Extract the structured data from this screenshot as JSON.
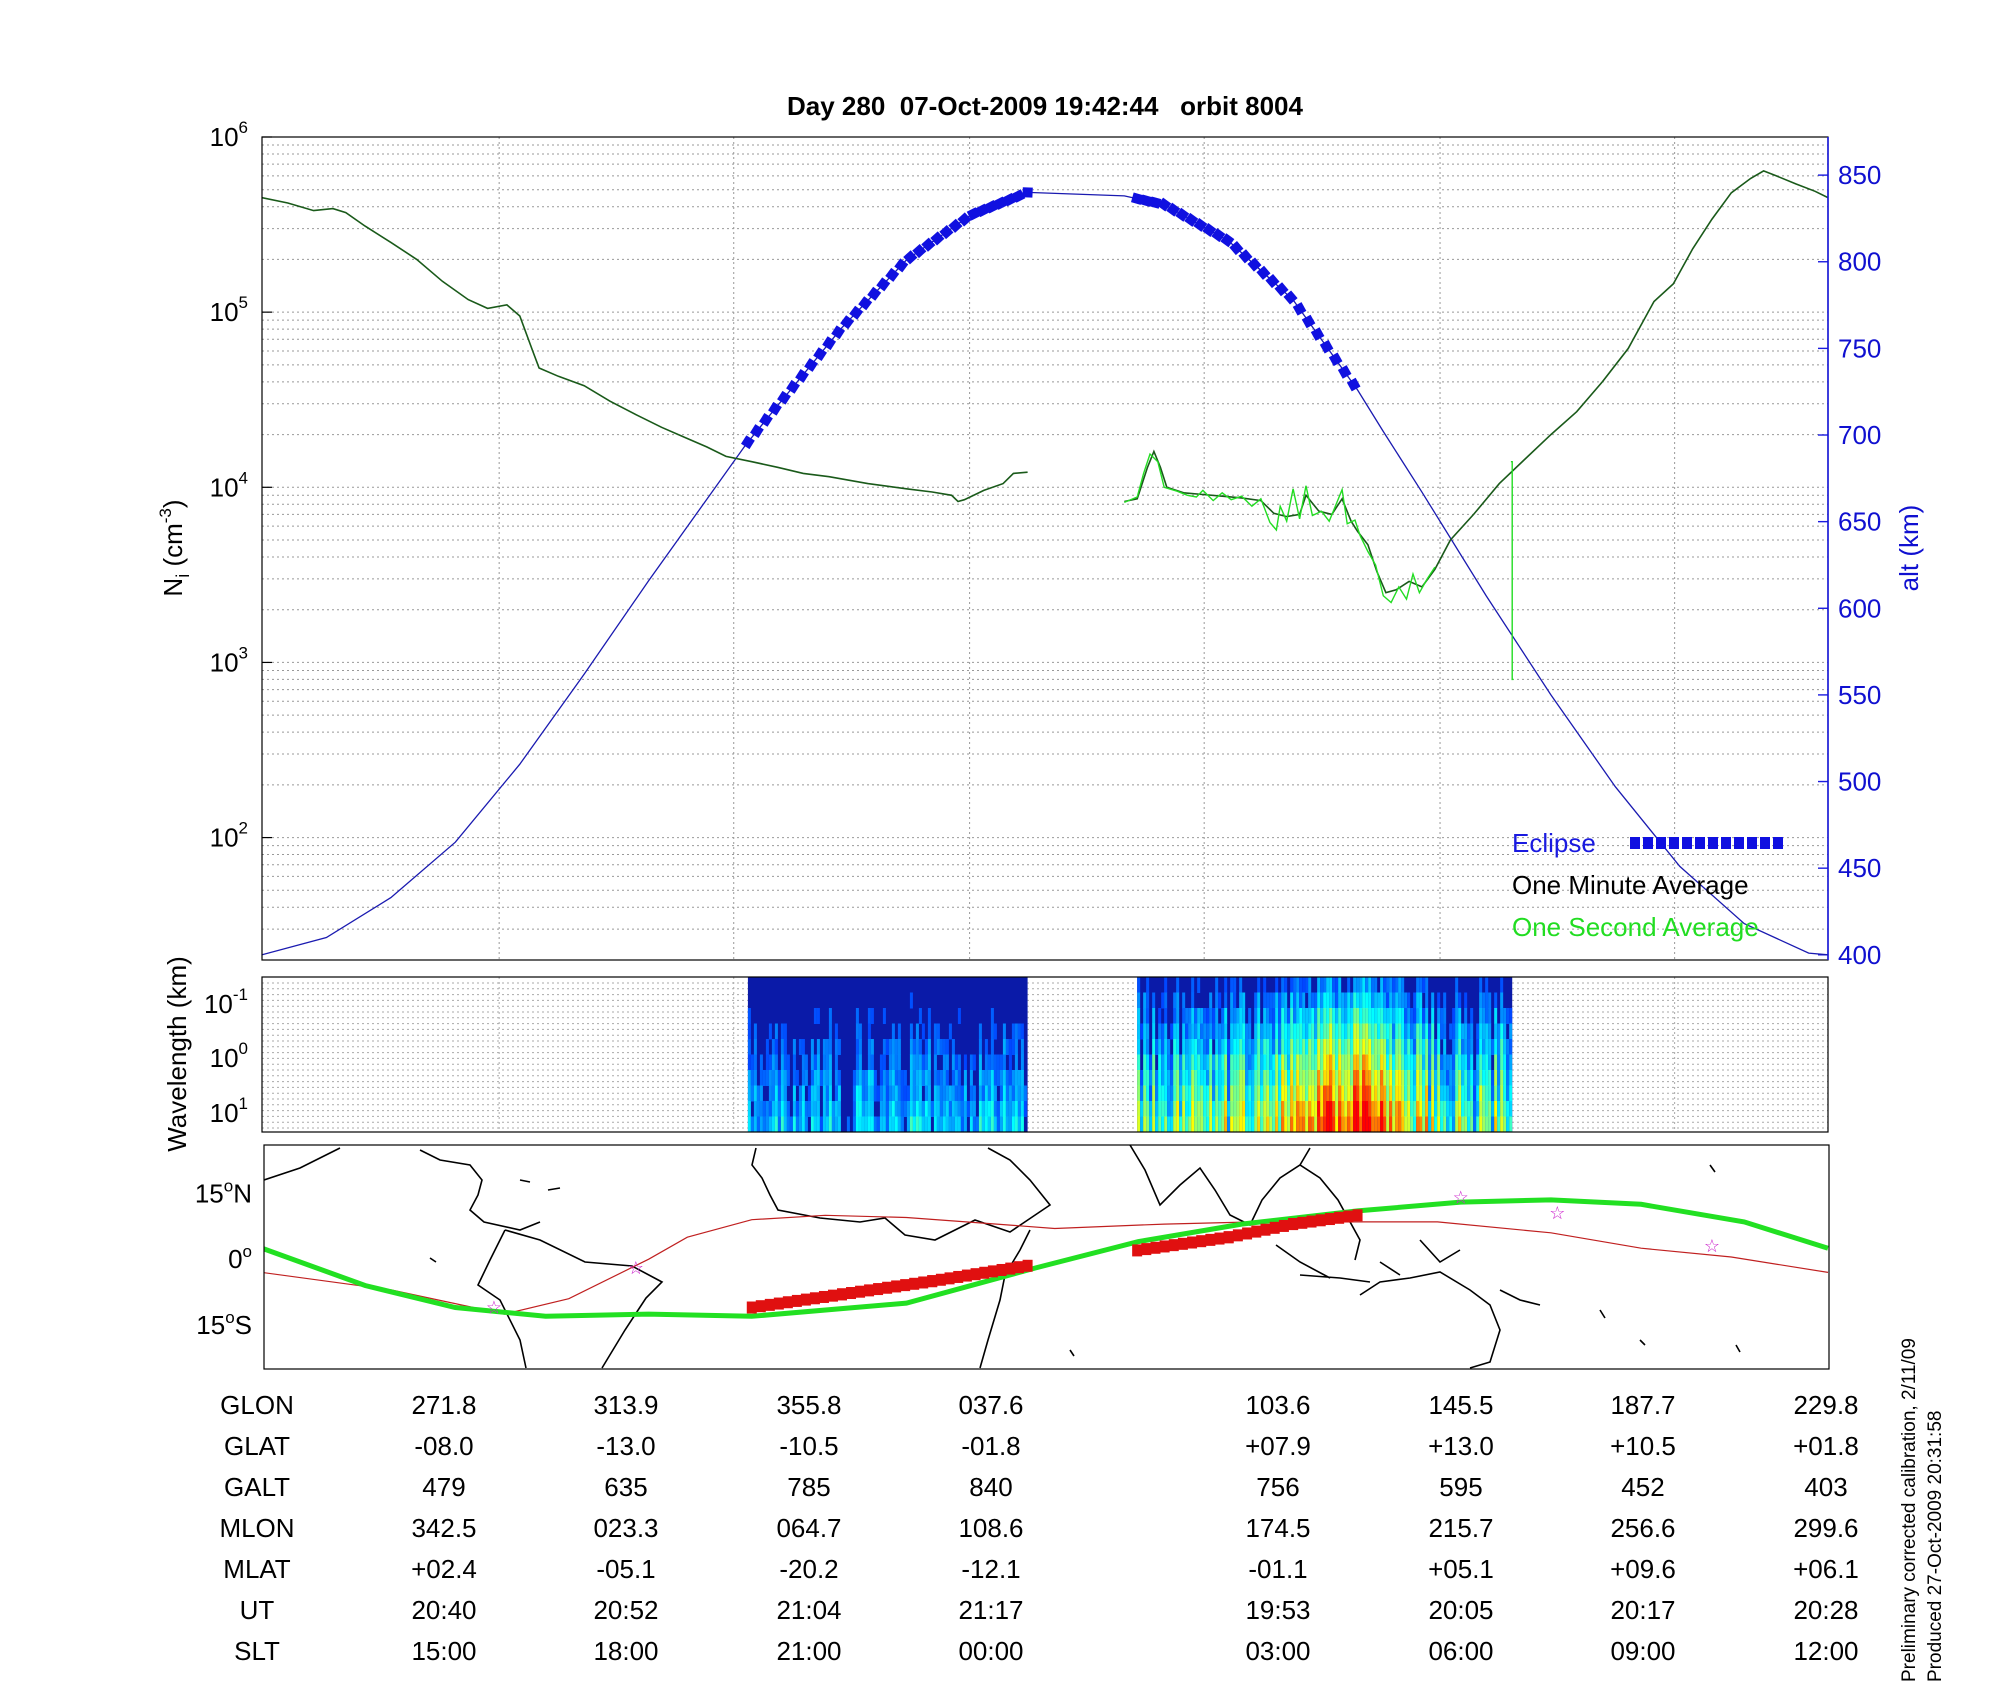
{
  "title": "Day 280  07-Oct-2009 19:42:44   orbit 8004",
  "chart_data": [
    {
      "type": "line",
      "panel": "density",
      "ylabel_left": "N",
      "ylabel_left_sub": "i",
      "ylabel_left_units": " (cm",
      "ylabel_left_exp": "-3",
      "ylabel_left_close": ")",
      "yscale_left": "log",
      "ylim_left": [
        20,
        1000000
      ],
      "yticks_left": [
        {
          "value": 100,
          "label": "10",
          "exp": "2"
        },
        {
          "value": 1000,
          "label": "10",
          "exp": "3"
        },
        {
          "value": 10000,
          "label": "10",
          "exp": "4"
        },
        {
          "value": 100000,
          "label": "10",
          "exp": "5"
        },
        {
          "value": 1000000,
          "label": "10",
          "exp": "6"
        }
      ],
      "ylabel_right": "alt (km)",
      "ylim_right": [
        397,
        872
      ],
      "yticks_right": [
        400,
        450,
        500,
        550,
        600,
        650,
        700,
        750,
        800,
        850
      ],
      "grid": true,
      "legend_position": "bottom-right",
      "legend": [
        {
          "label": "Eclipse",
          "color": "#1010e0"
        },
        {
          "label": "One Minute Average",
          "color": "#000000"
        },
        {
          "label": "One Second Average",
          "color": "#22dd22"
        }
      ],
      "series": [
        {
          "name": "One Minute Average",
          "color": "#1a5a1a",
          "segments": [
            [
              [
                0,
                450000
              ],
              [
                20,
                420000
              ],
              [
                40,
                380000
              ],
              [
                55,
                390000
              ],
              [
                65,
                370000
              ],
              [
                80,
                310000
              ],
              [
                100,
                250000
              ],
              [
                120,
                200000
              ],
              [
                140,
                150000
              ],
              [
                160,
                118000
              ],
              [
                175,
                105000
              ],
              [
                190,
                110000
              ],
              [
                200,
                95000
              ],
              [
                210,
                60000
              ],
              [
                215,
                48000
              ],
              [
                230,
                43000
              ],
              [
                250,
                38000
              ],
              [
                270,
                31000
              ],
              [
                290,
                26000
              ],
              [
                310,
                22000
              ],
              [
                330,
                19000
              ],
              [
                345,
                17000
              ],
              [
                360,
                15000
              ],
              [
                380,
                14000
              ],
              [
                400,
                13000
              ],
              [
                420,
                12000
              ],
              [
                440,
                11500
              ],
              [
                470,
                10500
              ],
              [
                500,
                9800
              ],
              [
                520,
                9400
              ],
              [
                535,
                9000
              ],
              [
                540,
                8300
              ],
              [
                545,
                8500
              ],
              [
                560,
                9600
              ],
              [
                575,
                10500
              ],
              [
                583,
                12000
              ],
              [
                594,
                12200
              ]
            ],
            [
              [
                669,
                8300
              ],
              [
                679,
                8600
              ],
              [
                687,
                13000
              ],
              [
                692,
                16000
              ],
              [
                697,
                13000
              ],
              [
                702,
                10000
              ],
              [
                715,
                9300
              ],
              [
                730,
                9100
              ],
              [
                745,
                8900
              ],
              [
                760,
                8700
              ],
              [
                775,
                8400
              ],
              [
                785,
                7100
              ],
              [
                795,
                6800
              ],
              [
                805,
                7000
              ],
              [
                810,
                9000
              ],
              [
                820,
                7300
              ],
              [
                830,
                7000
              ],
              [
                838,
                8600
              ],
              [
                845,
                6400
              ],
              [
                850,
                5600
              ],
              [
                858,
                4700
              ],
              [
                865,
                3300
              ],
              [
                872,
                2500
              ],
              [
                880,
                2600
              ],
              [
                890,
                2900
              ],
              [
                900,
                2700
              ],
              [
                910,
                3400
              ],
              [
                922,
                5000
              ],
              [
                940,
                7000
              ],
              [
                960,
                10500
              ],
              [
                980,
                14500
              ],
              [
                1000,
                20000
              ],
              [
                1020,
                27000
              ],
              [
                1040,
                40000
              ],
              [
                1060,
                62000
              ],
              [
                1080,
                115000
              ],
              [
                1095,
                145000
              ],
              [
                1110,
                230000
              ],
              [
                1125,
                340000
              ],
              [
                1140,
                480000
              ],
              [
                1155,
                580000
              ],
              [
                1165,
                640000
              ],
              [
                1175,
                600000
              ],
              [
                1190,
                540000
              ],
              [
                1205,
                490000
              ],
              [
                1215,
                450000
              ]
            ]
          ]
        },
        {
          "name": "One Second Average",
          "color": "#22dd22",
          "segments": [
            [
              [
                669,
                8200
              ],
              [
                679,
                8800
              ],
              [
                684,
                12000
              ],
              [
                689,
                15500
              ],
              [
                695,
                14000
              ],
              [
                700,
                10000
              ],
              [
                710,
                9500
              ],
              [
                718,
                9000
              ],
              [
                725,
                8800
              ],
              [
                730,
                9600
              ],
              [
                738,
                8400
              ],
              [
                745,
                9300
              ],
              [
                752,
                8500
              ],
              [
                760,
                8900
              ],
              [
                768,
                7800
              ],
              [
                775,
                8600
              ],
              [
                782,
                6300
              ],
              [
                787,
                5700
              ],
              [
                790,
                7800
              ],
              [
                795,
                6400
              ],
              [
                800,
                9800
              ],
              [
                805,
                6600
              ],
              [
                810,
                10200
              ],
              [
                815,
                6900
              ],
              [
                822,
                7300
              ],
              [
                828,
                6400
              ],
              [
                834,
                8200
              ],
              [
                838,
                9700
              ],
              [
                842,
                6200
              ],
              [
                848,
                6500
              ],
              [
                852,
                5300
              ],
              [
                858,
                4300
              ],
              [
                864,
                3600
              ],
              [
                870,
                2400
              ],
              [
                876,
                2200
              ],
              [
                882,
                2700
              ],
              [
                888,
                2300
              ],
              [
                893,
                3200
              ],
              [
                898,
                2500
              ],
              [
                904,
                3000
              ],
              [
                910,
                3500
              ]
            ],
            [
              [
                969,
                14000
              ],
              [
                970,
                14000
              ],
              [
                970,
                800
              ],
              [
                971,
                800
              ]
            ]
          ]
        }
      ],
      "altitude_km": [
        [
          0,
          400
        ],
        [
          50,
          410
        ],
        [
          100,
          433
        ],
        [
          150,
          465
        ],
        [
          200,
          510
        ],
        [
          250,
          562
        ],
        [
          300,
          616
        ],
        [
          350,
          668
        ],
        [
          375,
          694
        ],
        [
          400,
          717
        ],
        [
          450,
          762
        ],
        [
          500,
          801
        ],
        [
          550,
          827
        ],
        [
          594,
          840
        ],
        [
          669,
          838
        ],
        [
          700,
          833
        ],
        [
          750,
          812
        ],
        [
          800,
          778
        ],
        [
          850,
          726
        ],
        [
          870,
          702
        ],
        [
          900,
          667
        ],
        [
          950,
          607
        ],
        [
          1000,
          550
        ],
        [
          1050,
          497
        ],
        [
          1100,
          451
        ],
        [
          1150,
          418
        ],
        [
          1200,
          401
        ],
        [
          1215,
          400
        ]
      ],
      "eclipse_intervals": [
        [
          377,
          594
        ],
        [
          679,
          850
        ]
      ]
    },
    {
      "type": "heatmap",
      "panel": "spectrogram",
      "ylabel": "Wavelength (km)",
      "yscale": "log",
      "yticks": [
        {
          "label": "10",
          "exp": "-1"
        },
        {
          "label": "10",
          "exp": "0"
        },
        {
          "label": "10",
          "exp": "1"
        }
      ],
      "grid": true,
      "data_blocks": [
        [
          377,
          594
        ],
        [
          679,
          970
        ]
      ]
    },
    {
      "type": "line",
      "panel": "map",
      "yticks": [
        {
          "label": "15",
          "exp": "o",
          "suffix": "N"
        },
        {
          "label": "0",
          "exp": "o",
          "suffix": ""
        },
        {
          "label": "15",
          "exp": "o",
          "suffix": "S"
        }
      ],
      "ylim": [
        -25,
        26
      ],
      "magnetic_equator": [
        [
          0,
          -3
        ],
        [
          100,
          -7
        ],
        [
          188,
          -12.5
        ],
        [
          238,
          -9
        ],
        [
          300,
          0
        ],
        [
          330,
          5
        ],
        [
          380,
          9
        ],
        [
          437,
          10
        ],
        [
          500,
          9.5
        ],
        [
          570,
          8
        ],
        [
          615,
          7
        ],
        [
          700,
          8
        ],
        [
          770,
          8.5
        ],
        [
          840,
          8.5
        ],
        [
          912,
          8.5
        ],
        [
          1000,
          6
        ],
        [
          1070,
          2.5
        ],
        [
          1140,
          0.5
        ],
        [
          1215,
          -3
        ]
      ],
      "satellite_track": [
        [
          0,
          2.5
        ],
        [
          80,
          -6
        ],
        [
          150,
          -11
        ],
        [
          220,
          -13
        ],
        [
          300,
          -12.5
        ],
        [
          380,
          -13
        ],
        [
          500,
          -10
        ],
        [
          600,
          -2
        ],
        [
          680,
          4
        ],
        [
          760,
          8
        ],
        [
          850,
          11
        ],
        [
          930,
          13
        ],
        [
          1000,
          13.5
        ],
        [
          1070,
          12.5
        ],
        [
          1150,
          8.5
        ],
        [
          1215,
          2.5
        ]
      ],
      "eclipse_track_segments": [
        [
          [
            380,
            -11
          ],
          [
            450,
            -8
          ],
          [
            520,
            -5
          ],
          [
            594,
            -1.5
          ]
        ],
        [
          [
            679,
            2
          ],
          [
            750,
            5
          ],
          [
            800,
            8
          ],
          [
            850,
            10
          ]
        ]
      ],
      "star_markers": [
        [
          180,
          -11
        ],
        [
          290,
          -2
        ],
        [
          930,
          14
        ],
        [
          1005,
          10.5
        ],
        [
          1125,
          3
        ]
      ]
    }
  ],
  "ephemeris_table": {
    "rows": [
      {
        "label": "GLON",
        "values": [
          "271.8",
          "313.9",
          "355.8",
          "037.6",
          "103.6",
          "145.5",
          "187.7",
          "229.8"
        ]
      },
      {
        "label": "GLAT",
        "values": [
          "-08.0",
          "-13.0",
          "-10.5",
          "-01.8",
          "+07.9",
          "+13.0",
          "+10.5",
          "+01.8"
        ]
      },
      {
        "label": "GALT",
        "values": [
          "479",
          "635",
          "785",
          "840",
          "756",
          "595",
          "452",
          "403"
        ]
      },
      {
        "label": "MLON",
        "values": [
          "342.5",
          "023.3",
          "064.7",
          "108.6",
          "174.5",
          "215.7",
          "256.6",
          "299.6"
        ]
      },
      {
        "label": "MLAT",
        "values": [
          "+02.4",
          "-05.1",
          "-20.2",
          "-12.1",
          "-01.1",
          "+05.1",
          "+09.6",
          "+06.1"
        ]
      },
      {
        "label": "UT",
        "values": [
          "20:40",
          "20:52",
          "21:04",
          "21:17",
          "19:53",
          "20:05",
          "20:17",
          "20:28"
        ]
      },
      {
        "label": "SLT",
        "values": [
          "15:00",
          "18:00",
          "21:00",
          "00:00",
          "03:00",
          "06:00",
          "09:00",
          "12:00"
        ]
      }
    ]
  },
  "footnotes": {
    "line1": "Preliminary corrected calibration, 2/11/09",
    "line2": "Produced 27-Oct-2009 20:31:58"
  },
  "colors": {
    "altitude": "#1a1ab0",
    "eclipse": "#1010e0",
    "minute_average": "#1a5a1a",
    "second_average": "#22dd22",
    "map_track": "#22e022",
    "map_eclipse": "#e01010",
    "magnetic_equator": "#c02020",
    "star": "#cc22cc"
  }
}
